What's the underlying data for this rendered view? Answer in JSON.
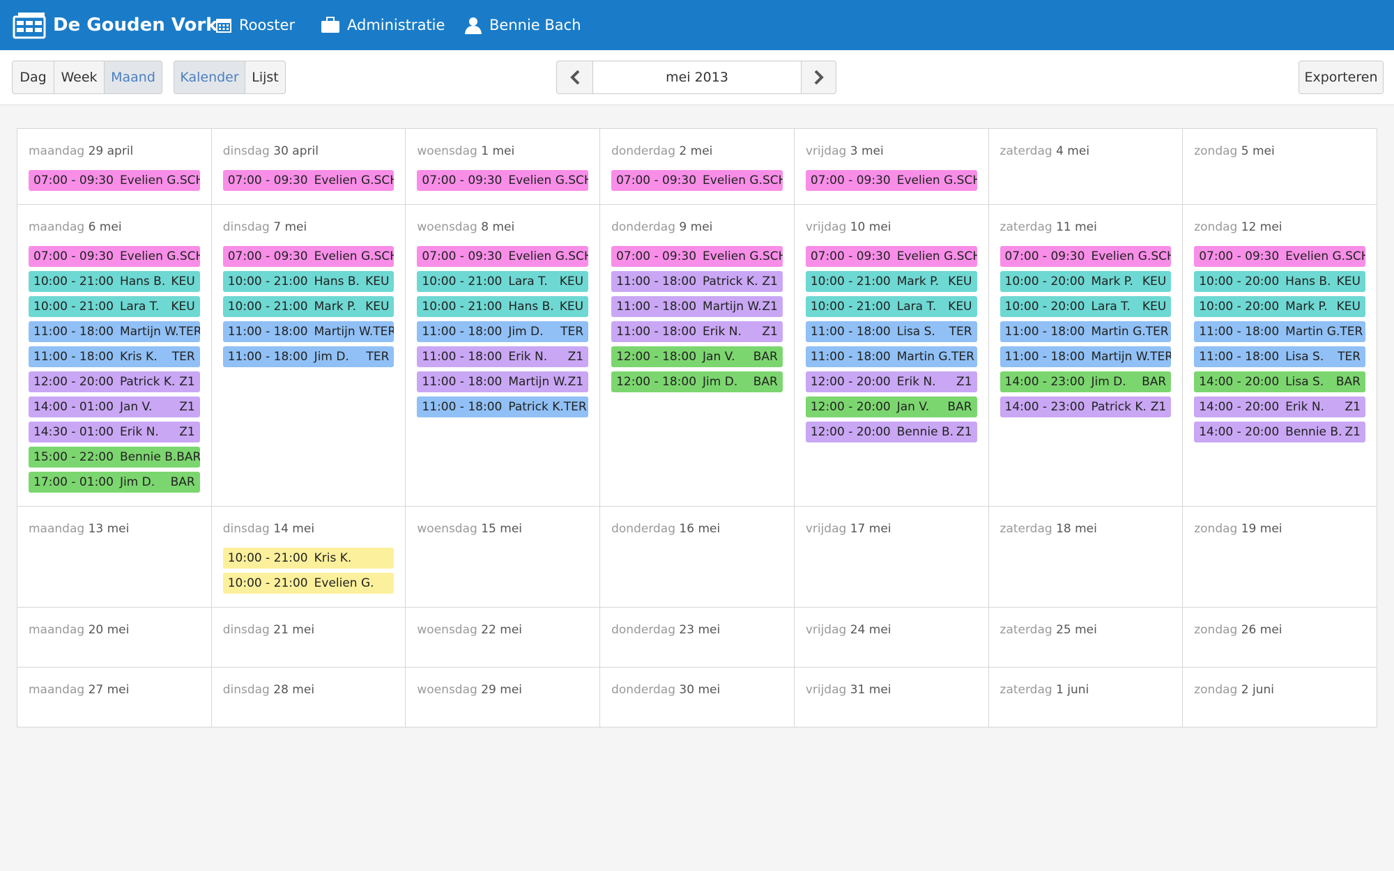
{
  "nav": {
    "brand": "De Gouden Vork",
    "links": [
      "Rooster",
      "Administratie",
      "Bennie Bach"
    ]
  },
  "toolbar": {
    "views": [
      "Dag",
      "Week",
      "Maand"
    ],
    "active_view": 2,
    "modes": [
      "Kalender",
      "Lijst"
    ],
    "active_mode": 0,
    "period": "mei 2013",
    "export": "Exporteren"
  },
  "calendar": {
    "code_colors": {
      "SCH": "#f88ee8",
      "KEU": "#6ed8d3",
      "TER": "#90c0f5",
      "Z1": "#c9a7f4",
      "BAR": "#7cd66f"
    },
    "no_code_color": "#fdf09c",
    "weeks": [
      {
        "days": [
          {
            "weekday": "maandag",
            "date": "29 april",
            "events": [
              [
                "07:00 - 09:30",
                "Evelien G.",
                "SCH"
              ]
            ]
          },
          {
            "weekday": "dinsdag",
            "date": "30 april",
            "events": [
              [
                "07:00 - 09:30",
                "Evelien G.",
                "SCH"
              ]
            ]
          },
          {
            "weekday": "woensdag",
            "date": "1 mei",
            "events": [
              [
                "07:00 - 09:30",
                "Evelien G.",
                "SCH"
              ]
            ]
          },
          {
            "weekday": "donderdag",
            "date": "2 mei",
            "events": [
              [
                "07:00 - 09:30",
                "Evelien G.",
                "SCH"
              ]
            ]
          },
          {
            "weekday": "vrijdag",
            "date": "3 mei",
            "events": [
              [
                "07:00 - 09:30",
                "Evelien G.",
                "SCH"
              ]
            ]
          },
          {
            "weekday": "zaterdag",
            "date": "4 mei",
            "events": []
          },
          {
            "weekday": "zondag",
            "date": "5 mei",
            "events": []
          }
        ]
      },
      {
        "days": [
          {
            "weekday": "maandag",
            "date": "6 mei",
            "events": [
              [
                "07:00 - 09:30",
                "Evelien G.",
                "SCH"
              ],
              [
                "10:00 - 21:00",
                "Hans B.",
                "KEU"
              ],
              [
                "10:00 - 21:00",
                "Lara T.",
                "KEU"
              ],
              [
                "11:00 - 18:00",
                "Martijn W.",
                "TER"
              ],
              [
                "11:00 - 18:00",
                "Kris K.",
                "TER"
              ],
              [
                "12:00 - 20:00",
                "Patrick K.",
                "Z1"
              ],
              [
                "14:00 - 01:00",
                "Jan V.",
                "Z1"
              ],
              [
                "14:30 - 01:00",
                "Erik N.",
                "Z1"
              ],
              [
                "15:00 - 22:00",
                "Bennie B.",
                "BAR"
              ],
              [
                "17:00 - 01:00",
                "Jim D.",
                "BAR"
              ]
            ]
          },
          {
            "weekday": "dinsdag",
            "date": "7 mei",
            "events": [
              [
                "07:00 - 09:30",
                "Evelien G.",
                "SCH"
              ],
              [
                "10:00 - 21:00",
                "Hans B.",
                "KEU"
              ],
              [
                "10:00 - 21:00",
                "Mark P.",
                "KEU"
              ],
              [
                "11:00 - 18:00",
                "Martijn W.",
                "TER"
              ],
              [
                "11:00 - 18:00",
                "Jim D.",
                "TER"
              ]
            ]
          },
          {
            "weekday": "woensdag",
            "date": "8 mei",
            "events": [
              [
                "07:00 - 09:30",
                "Evelien G.",
                "SCH"
              ],
              [
                "10:00 - 21:00",
                "Lara T.",
                "KEU"
              ],
              [
                "10:00 - 21:00",
                "Hans B.",
                "KEU"
              ],
              [
                "11:00 - 18:00",
                "Jim D.",
                "TER"
              ],
              [
                "11:00 - 18:00",
                "Erik N.",
                "Z1"
              ],
              [
                "11:00 - 18:00",
                "Martijn W.",
                "Z1"
              ],
              [
                "11:00 - 18:00",
                "Patrick K.",
                "TER"
              ]
            ]
          },
          {
            "weekday": "donderdag",
            "date": "9 mei",
            "events": [
              [
                "07:00 - 09:30",
                "Evelien G.",
                "SCH"
              ],
              [
                "11:00 - 18:00",
                "Patrick K.",
                "Z1"
              ],
              [
                "11:00 - 18:00",
                "Martijn W.",
                "Z1"
              ],
              [
                "11:00 - 18:00",
                "Erik N.",
                "Z1"
              ],
              [
                "12:00 - 18:00",
                "Jan V.",
                "BAR"
              ],
              [
                "12:00 - 18:00",
                "Jim D.",
                "BAR"
              ]
            ]
          },
          {
            "weekday": "vrijdag",
            "date": "10 mei",
            "events": [
              [
                "07:00 - 09:30",
                "Evelien G.",
                "SCH"
              ],
              [
                "10:00 - 21:00",
                "Mark P.",
                "KEU"
              ],
              [
                "10:00 - 21:00",
                "Lara T.",
                "KEU"
              ],
              [
                "11:00 - 18:00",
                "Lisa S.",
                "TER"
              ],
              [
                "11:00 - 18:00",
                "Martin G.",
                "TER"
              ],
              [
                "12:00 - 20:00",
                "Erik N.",
                "Z1"
              ],
              [
                "12:00 - 20:00",
                "Jan V.",
                "BAR"
              ],
              [
                "12:00 - 20:00",
                "Bennie B.",
                "Z1"
              ]
            ]
          },
          {
            "weekday": "zaterdag",
            "date": "11 mei",
            "events": [
              [
                "07:00 - 09:30",
                "Evelien G.",
                "SCH"
              ],
              [
                "10:00 - 20:00",
                "Mark P.",
                "KEU"
              ],
              [
                "10:00 - 20:00",
                "Lara T.",
                "KEU"
              ],
              [
                "11:00 - 18:00",
                "Martin G.",
                "TER"
              ],
              [
                "11:00 - 18:00",
                "Martijn W.",
                "TER"
              ],
              [
                "14:00 - 23:00",
                "Jim D.",
                "BAR"
              ],
              [
                "14:00 - 23:00",
                "Patrick K.",
                "Z1"
              ]
            ]
          },
          {
            "weekday": "zondag",
            "date": "12 mei",
            "events": [
              [
                "07:00 - 09:30",
                "Evelien G.",
                "SCH"
              ],
              [
                "10:00 - 20:00",
                "Hans B.",
                "KEU"
              ],
              [
                "10:00 - 20:00",
                "Mark P.",
                "KEU"
              ],
              [
                "11:00 - 18:00",
                "Martin G.",
                "TER"
              ],
              [
                "11:00 - 18:00",
                "Lisa S.",
                "TER"
              ],
              [
                "14:00 - 20:00",
                "Lisa S.",
                "BAR"
              ],
              [
                "14:00 - 20:00",
                "Erik N.",
                "Z1"
              ],
              [
                "14:00 - 20:00",
                "Bennie B.",
                "Z1"
              ]
            ]
          }
        ]
      },
      {
        "days": [
          {
            "weekday": "maandag",
            "date": "13 mei",
            "events": []
          },
          {
            "weekday": "dinsdag",
            "date": "14 mei",
            "events": [
              [
                "10:00 - 21:00",
                "Kris K."
              ],
              [
                "10:00 - 21:00",
                "Evelien G."
              ]
            ]
          },
          {
            "weekday": "woensdag",
            "date": "15 mei",
            "events": []
          },
          {
            "weekday": "donderdag",
            "date": "16 mei",
            "events": []
          },
          {
            "weekday": "vrijdag",
            "date": "17 mei",
            "events": []
          },
          {
            "weekday": "zaterdag",
            "date": "18 mei",
            "events": []
          },
          {
            "weekday": "zondag",
            "date": "19 mei",
            "events": []
          }
        ]
      },
      {
        "days": [
          {
            "weekday": "maandag",
            "date": "20 mei",
            "events": []
          },
          {
            "weekday": "dinsdag",
            "date": "21 mei",
            "events": []
          },
          {
            "weekday": "woensdag",
            "date": "22 mei",
            "events": []
          },
          {
            "weekday": "donderdag",
            "date": "23 mei",
            "events": []
          },
          {
            "weekday": "vrijdag",
            "date": "24 mei",
            "events": []
          },
          {
            "weekday": "zaterdag",
            "date": "25 mei",
            "events": []
          },
          {
            "weekday": "zondag",
            "date": "26 mei",
            "events": []
          }
        ]
      },
      {
        "days": [
          {
            "weekday": "maandag",
            "date": "27 mei",
            "events": []
          },
          {
            "weekday": "dinsdag",
            "date": "28 mei",
            "events": []
          },
          {
            "weekday": "woensdag",
            "date": "29 mei",
            "events": []
          },
          {
            "weekday": "donderdag",
            "date": "30 mei",
            "events": []
          },
          {
            "weekday": "vrijdag",
            "date": "31 mei",
            "events": []
          },
          {
            "weekday": "zaterdag",
            "date": "1 juni",
            "events": []
          },
          {
            "weekday": "zondag",
            "date": "2 juni",
            "events": []
          }
        ]
      }
    ]
  }
}
